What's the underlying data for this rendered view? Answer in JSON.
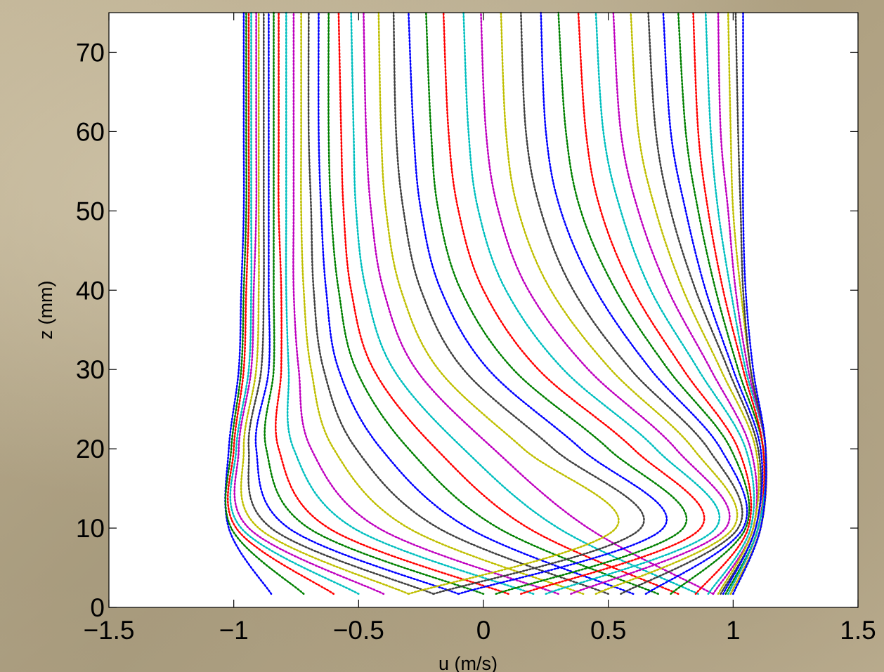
{
  "chart_data": {
    "type": "line",
    "title": "",
    "xlabel": "u (m/s)",
    "ylabel": "z (mm)",
    "xlim": [
      -1.5,
      1.5
    ],
    "ylim": [
      0,
      75
    ],
    "xticks": [
      -1.5,
      -1,
      -0.5,
      0,
      0.5,
      1,
      1.5
    ],
    "xtick_labels": [
      "−1.5",
      "−1",
      "−0.5",
      "0",
      "0.5",
      "1",
      "1.5"
    ],
    "yticks": [
      0,
      10,
      20,
      30,
      40,
      50,
      60,
      70
    ],
    "ytick_labels": [
      "0",
      "10",
      "20",
      "30",
      "40",
      "50",
      "60",
      "70"
    ],
    "grid": false,
    "legend": "none",
    "marker": "dot",
    "colors": [
      "#0000ff",
      "#008000",
      "#ff0000",
      "#00bfbf",
      "#bf00bf",
      "#bfbf00",
      "#404040"
    ],
    "series": [
      {
        "x": [
          -0.85,
          -1.02,
          -1.02,
          -0.98,
          -0.97,
          -0.96,
          -0.96,
          -0.96
        ],
        "y": [
          1.7,
          10,
          20,
          30,
          40,
          50,
          60,
          75
        ]
      },
      {
        "x": [
          -0.72,
          -1.01,
          -1.01,
          -0.97,
          -0.96,
          -0.95,
          -0.95,
          -0.95
        ],
        "y": [
          1.7,
          10,
          20,
          30,
          40,
          50,
          60,
          75
        ]
      },
      {
        "x": [
          -0.6,
          -0.99,
          -1.0,
          -0.96,
          -0.95,
          -0.94,
          -0.94,
          -0.94
        ],
        "y": [
          1.7,
          10,
          20,
          30,
          40,
          50,
          60,
          75
        ]
      },
      {
        "x": [
          -0.5,
          -0.97,
          -0.99,
          -0.94,
          -0.93,
          -0.93,
          -0.93,
          -0.93
        ],
        "y": [
          1.7,
          10,
          20,
          30,
          40,
          50,
          60,
          75
        ]
      },
      {
        "x": [
          -0.4,
          -0.94,
          -0.98,
          -0.93,
          -0.92,
          -0.91,
          -0.91,
          -0.91
        ],
        "y": [
          1.7,
          10,
          20,
          30,
          40,
          50,
          60,
          75
        ]
      },
      {
        "x": [
          -0.3,
          -0.9,
          -0.96,
          -0.91,
          -0.9,
          -0.9,
          -0.9,
          -0.9
        ],
        "y": [
          1.7,
          10,
          20,
          30,
          40,
          50,
          60,
          75
        ]
      },
      {
        "x": [
          -0.2,
          -0.85,
          -0.94,
          -0.89,
          -0.88,
          -0.88,
          -0.88,
          -0.88
        ],
        "y": [
          1.7,
          10,
          20,
          30,
          40,
          50,
          60,
          75
        ]
      },
      {
        "x": [
          -0.1,
          -0.78,
          -0.91,
          -0.86,
          -0.86,
          -0.86,
          -0.86,
          -0.86
        ],
        "y": [
          1.7,
          10,
          20,
          30,
          40,
          50,
          60,
          75
        ]
      },
      {
        "x": [
          0.0,
          -0.7,
          -0.87,
          -0.84,
          -0.84,
          -0.84,
          -0.84,
          -0.84
        ],
        "y": [
          1.7,
          10,
          20,
          30,
          40,
          50,
          60,
          75
        ]
      },
      {
        "x": [
          0.1,
          -0.62,
          -0.82,
          -0.81,
          -0.81,
          -0.82,
          -0.82,
          -0.82
        ],
        "y": [
          1.7,
          10,
          20,
          30,
          40,
          50,
          60,
          75
        ]
      },
      {
        "x": [
          0.2,
          -0.52,
          -0.76,
          -0.78,
          -0.79,
          -0.79,
          -0.79,
          -0.79
        ],
        "y": [
          1.7,
          10,
          20,
          30,
          40,
          50,
          60,
          75
        ]
      },
      {
        "x": [
          0.3,
          -0.42,
          -0.69,
          -0.74,
          -0.76,
          -0.76,
          -0.76,
          -0.76
        ],
        "y": [
          1.7,
          10,
          20,
          30,
          40,
          50,
          60,
          75
        ]
      },
      {
        "x": [
          0.4,
          -0.3,
          -0.6,
          -0.69,
          -0.72,
          -0.73,
          -0.73,
          -0.73
        ],
        "y": [
          1.7,
          10,
          20,
          30,
          40,
          50,
          60,
          75
        ]
      },
      {
        "x": [
          0.5,
          -0.18,
          -0.51,
          -0.64,
          -0.68,
          -0.69,
          -0.7,
          -0.7
        ],
        "y": [
          1.7,
          10,
          20,
          30,
          40,
          50,
          60,
          75
        ]
      },
      {
        "x": [
          0.6,
          -0.06,
          -0.41,
          -0.58,
          -0.63,
          -0.65,
          -0.66,
          -0.66
        ],
        "y": [
          1.7,
          10,
          20,
          30,
          40,
          50,
          60,
          75
        ]
      },
      {
        "x": [
          0.7,
          0.06,
          -0.3,
          -0.51,
          -0.58,
          -0.61,
          -0.62,
          -0.62
        ],
        "y": [
          1.7,
          10,
          20,
          30,
          40,
          50,
          60,
          75
        ]
      },
      {
        "x": [
          0.78,
          0.18,
          -0.19,
          -0.44,
          -0.53,
          -0.56,
          -0.57,
          -0.58
        ],
        "y": [
          1.7,
          10,
          20,
          30,
          40,
          50,
          60,
          75
        ]
      },
      {
        "x": [
          0.86,
          0.3,
          -0.08,
          -0.36,
          -0.47,
          -0.51,
          -0.52,
          -0.53
        ],
        "y": [
          1.7,
          10,
          20,
          30,
          40,
          50,
          60,
          75
        ]
      },
      {
        "x": [
          0.92,
          0.42,
          0.04,
          -0.27,
          -0.4,
          -0.45,
          -0.47,
          -0.48
        ],
        "y": [
          1.7,
          10,
          20,
          30,
          40,
          50,
          60,
          75
        ]
      },
      {
        "x": [
          -0.3,
          0.53,
          0.16,
          -0.18,
          -0.33,
          -0.39,
          -0.41,
          -0.42
        ],
        "y": [
          1.7,
          10,
          20,
          30,
          40,
          50,
          60,
          75
        ]
      },
      {
        "x": [
          -0.2,
          0.63,
          0.28,
          -0.08,
          -0.25,
          -0.32,
          -0.35,
          -0.36
        ],
        "y": [
          1.7,
          10,
          20,
          30,
          40,
          50,
          60,
          75
        ]
      },
      {
        "x": [
          -0.1,
          0.72,
          0.39,
          0.02,
          -0.17,
          -0.25,
          -0.28,
          -0.3
        ],
        "y": [
          1.7,
          10,
          20,
          30,
          40,
          50,
          60,
          75
        ]
      },
      {
        "x": [
          0.05,
          0.8,
          0.5,
          0.12,
          -0.09,
          -0.18,
          -0.21,
          -0.23
        ],
        "y": [
          1.7,
          10,
          20,
          30,
          40,
          50,
          60,
          75
        ]
      },
      {
        "x": [
          0.15,
          0.87,
          0.6,
          0.22,
          0.0,
          -0.1,
          -0.14,
          -0.16
        ],
        "y": [
          1.7,
          10,
          20,
          30,
          40,
          50,
          60,
          75
        ]
      },
      {
        "x": [
          0.25,
          0.93,
          0.69,
          0.32,
          0.09,
          -0.02,
          -0.06,
          -0.08
        ],
        "y": [
          1.7,
          10,
          20,
          30,
          40,
          50,
          60,
          75
        ]
      },
      {
        "x": [
          0.35,
          0.97,
          0.77,
          0.42,
          0.18,
          0.06,
          0.01,
          -0.01
        ],
        "y": [
          1.7,
          10,
          20,
          30,
          40,
          50,
          60,
          75
        ]
      },
      {
        "x": [
          0.45,
          1.0,
          0.84,
          0.51,
          0.27,
          0.14,
          0.09,
          0.07
        ],
        "y": [
          1.7,
          10,
          20,
          30,
          40,
          50,
          60,
          75
        ]
      },
      {
        "x": [
          0.55,
          1.02,
          0.9,
          0.59,
          0.36,
          0.23,
          0.17,
          0.15
        ],
        "y": [
          1.7,
          10,
          20,
          30,
          40,
          50,
          60,
          75
        ]
      },
      {
        "x": [
          0.65,
          1.04,
          0.95,
          0.67,
          0.45,
          0.31,
          0.25,
          0.23
        ],
        "y": [
          1.7,
          10,
          20,
          30,
          40,
          50,
          60,
          75
        ]
      },
      {
        "x": [
          0.75,
          1.05,
          0.99,
          0.74,
          0.53,
          0.39,
          0.33,
          0.3
        ],
        "y": [
          1.7,
          10,
          20,
          30,
          40,
          50,
          60,
          75
        ]
      },
      {
        "x": [
          0.85,
          1.06,
          1.02,
          0.8,
          0.6,
          0.47,
          0.41,
          0.38
        ],
        "y": [
          1.7,
          10,
          20,
          30,
          40,
          50,
          60,
          75
        ]
      },
      {
        "x": [
          0.9,
          1.07,
          1.05,
          0.86,
          0.67,
          0.55,
          0.48,
          0.45
        ],
        "y": [
          1.7,
          10,
          20,
          30,
          40,
          50,
          60,
          75
        ]
      },
      {
        "x": [
          0.92,
          1.08,
          1.07,
          0.91,
          0.74,
          0.62,
          0.55,
          0.52
        ],
        "y": [
          1.7,
          10,
          20,
          30,
          40,
          50,
          60,
          75
        ]
      },
      {
        "x": [
          0.94,
          1.08,
          1.09,
          0.95,
          0.8,
          0.69,
          0.62,
          0.59
        ],
        "y": [
          1.7,
          10,
          20,
          30,
          40,
          50,
          60,
          75
        ]
      },
      {
        "x": [
          0.95,
          1.09,
          1.1,
          0.98,
          0.85,
          0.75,
          0.69,
          0.66
        ],
        "y": [
          1.7,
          10,
          20,
          30,
          40,
          50,
          60,
          75
        ]
      },
      {
        "x": [
          0.96,
          1.09,
          1.11,
          1.0,
          0.89,
          0.81,
          0.75,
          0.72
        ],
        "y": [
          1.7,
          10,
          20,
          30,
          40,
          50,
          60,
          75
        ]
      },
      {
        "x": [
          0.97,
          1.1,
          1.12,
          1.02,
          0.93,
          0.86,
          0.81,
          0.78
        ],
        "y": [
          1.7,
          10,
          20,
          30,
          40,
          50,
          60,
          75
        ]
      },
      {
        "x": [
          0.98,
          1.1,
          1.12,
          1.04,
          0.96,
          0.9,
          0.86,
          0.84
        ],
        "y": [
          1.7,
          10,
          20,
          30,
          40,
          50,
          60,
          75
        ]
      },
      {
        "x": [
          0.98,
          1.1,
          1.13,
          1.05,
          0.99,
          0.94,
          0.91,
          0.89
        ],
        "y": [
          1.7,
          10,
          20,
          30,
          40,
          50,
          60,
          75
        ]
      },
      {
        "x": [
          0.99,
          1.11,
          1.13,
          1.06,
          1.01,
          0.98,
          0.95,
          0.94
        ],
        "y": [
          1.7,
          10,
          20,
          30,
          40,
          50,
          60,
          75
        ]
      },
      {
        "x": [
          0.99,
          1.11,
          1.13,
          1.07,
          1.03,
          1.0,
          0.99,
          0.98
        ],
        "y": [
          1.7,
          10,
          20,
          30,
          40,
          50,
          60,
          75
        ]
      },
      {
        "x": [
          1.0,
          1.11,
          1.13,
          1.07,
          1.04,
          1.03,
          1.02,
          1.01
        ],
        "y": [
          1.7,
          10,
          20,
          30,
          40,
          50,
          60,
          75
        ]
      },
      {
        "x": [
          1.0,
          1.11,
          1.13,
          1.08,
          1.05,
          1.04,
          1.04,
          1.04
        ],
        "y": [
          1.7,
          10,
          20,
          30,
          40,
          50,
          60,
          75
        ]
      }
    ]
  }
}
